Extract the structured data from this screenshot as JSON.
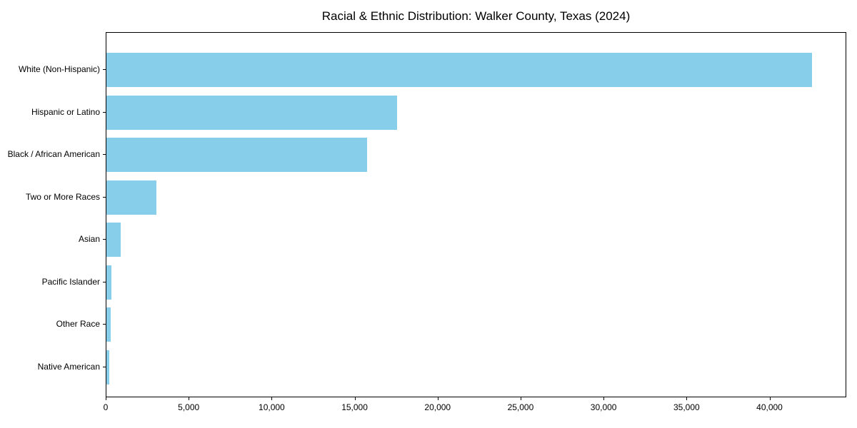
{
  "chart_data": {
    "type": "bar",
    "orientation": "horizontal",
    "title": "Racial & Ethnic Distribution: Walker County, Texas (2024)",
    "categories": [
      "White (Non-Hispanic)",
      "Hispanic or Latino",
      "Black / African American",
      "Two or More Races",
      "Asian",
      "Pacific Islander",
      "Other Race",
      "Native American"
    ],
    "values": [
      42500,
      17500,
      15700,
      3000,
      850,
      300,
      250,
      180
    ],
    "xlabel": "",
    "ylabel": "",
    "xlim": [
      0,
      44625
    ],
    "xtick_labels": [
      "0",
      "5,000",
      "10,000",
      "15,000",
      "20,000",
      "25,000",
      "30,000",
      "35,000",
      "40,000"
    ],
    "grid": false,
    "legend": null,
    "colors": {
      "bar_fill": "#87ceeb",
      "spine": "#000000",
      "text": "#000000",
      "background": "#ffffff"
    }
  }
}
